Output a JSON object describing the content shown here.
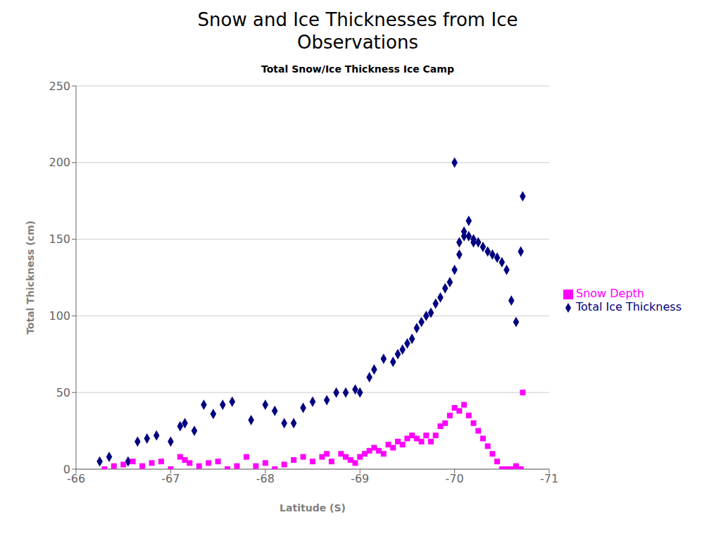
{
  "chart_data": {
    "type": "scatter",
    "title": "Snow and Ice Thicknesses from Ice\nObservations",
    "subtitle": "Total Snow/Ice Thickness Ice Camp",
    "xlabel": "Latitude (S)",
    "ylabel": "Total Thickness (cm)",
    "xlim": [
      -66,
      -71
    ],
    "xticks": [
      -66,
      -67,
      -68,
      -69,
      -70,
      -71
    ],
    "ylim": [
      0,
      250
    ],
    "yticks": [
      0,
      50,
      100,
      150,
      200,
      250
    ],
    "grid": "y",
    "legend": "right",
    "series": [
      {
        "name": "Total Ice Thickness",
        "color": "#000080",
        "marker": "diamond",
        "x": [
          -66.25,
          -66.35,
          -66.55,
          -66.65,
          -66.75,
          -66.85,
          -67.0,
          -67.1,
          -67.15,
          -67.25,
          -67.35,
          -67.45,
          -67.55,
          -67.65,
          -67.85,
          -68.0,
          -68.1,
          -68.2,
          -68.3,
          -68.4,
          -68.5,
          -68.65,
          -68.75,
          -68.85,
          -68.95,
          -69.0,
          -69.1,
          -69.15,
          -69.25,
          -69.35,
          -69.4,
          -69.45,
          -69.5,
          -69.55,
          -69.6,
          -69.65,
          -69.7,
          -69.75,
          -69.8,
          -69.85,
          -69.9,
          -69.95,
          -70.0,
          -70.0,
          -70.05,
          -70.05,
          -70.1,
          -70.1,
          -70.15,
          -70.15,
          -70.2,
          -70.2,
          -70.25,
          -70.3,
          -70.35,
          -70.4,
          -70.45,
          -70.5,
          -70.55,
          -70.6,
          -70.65,
          -70.7,
          -70.72
        ],
        "values": [
          5,
          8,
          5,
          18,
          20,
          22,
          18,
          28,
          30,
          25,
          42,
          36,
          42,
          44,
          32,
          42,
          38,
          30,
          30,
          40,
          44,
          45,
          50,
          50,
          52,
          50,
          60,
          65,
          72,
          70,
          75,
          78,
          82,
          85,
          92,
          96,
          100,
          102,
          108,
          112,
          118,
          122,
          130,
          200,
          140,
          148,
          152,
          155,
          162,
          152,
          148,
          150,
          148,
          145,
          142,
          140,
          138,
          135,
          130,
          110,
          96,
          142,
          178
        ]
      },
      {
        "name": "Snow  Depth",
        "color": "#FF00FF",
        "marker": "square",
        "x": [
          -66.3,
          -66.4,
          -66.5,
          -66.6,
          -66.7,
          -66.8,
          -66.9,
          -67.0,
          -67.1,
          -67.15,
          -67.2,
          -67.3,
          -67.4,
          -67.5,
          -67.6,
          -67.7,
          -67.8,
          -67.9,
          -68.0,
          -68.1,
          -68.2,
          -68.3,
          -68.4,
          -68.5,
          -68.6,
          -68.65,
          -68.7,
          -68.8,
          -68.85,
          -68.9,
          -68.95,
          -69.0,
          -69.05,
          -69.1,
          -69.15,
          -69.2,
          -69.25,
          -69.3,
          -69.35,
          -69.4,
          -69.45,
          -69.5,
          -69.55,
          -69.6,
          -69.65,
          -69.7,
          -69.75,
          -69.8,
          -69.85,
          -69.9,
          -69.95,
          -70.0,
          -70.05,
          -70.1,
          -70.15,
          -70.2,
          -70.25,
          -70.3,
          -70.35,
          -70.4,
          -70.45,
          -70.5,
          -70.55,
          -70.6,
          -70.65,
          -70.7,
          -70.72
        ],
        "values": [
          0,
          2,
          3,
          5,
          2,
          4,
          5,
          0,
          8,
          6,
          4,
          2,
          4,
          5,
          0,
          2,
          8,
          2,
          4,
          0,
          3,
          6,
          8,
          5,
          8,
          10,
          5,
          10,
          8,
          6,
          4,
          8,
          10,
          12,
          14,
          12,
          10,
          16,
          14,
          18,
          16,
          20,
          22,
          20,
          18,
          22,
          18,
          22,
          28,
          30,
          35,
          40,
          38,
          42,
          35,
          30,
          25,
          20,
          15,
          10,
          5,
          0,
          0,
          0,
          2,
          0,
          50
        ]
      }
    ]
  }
}
